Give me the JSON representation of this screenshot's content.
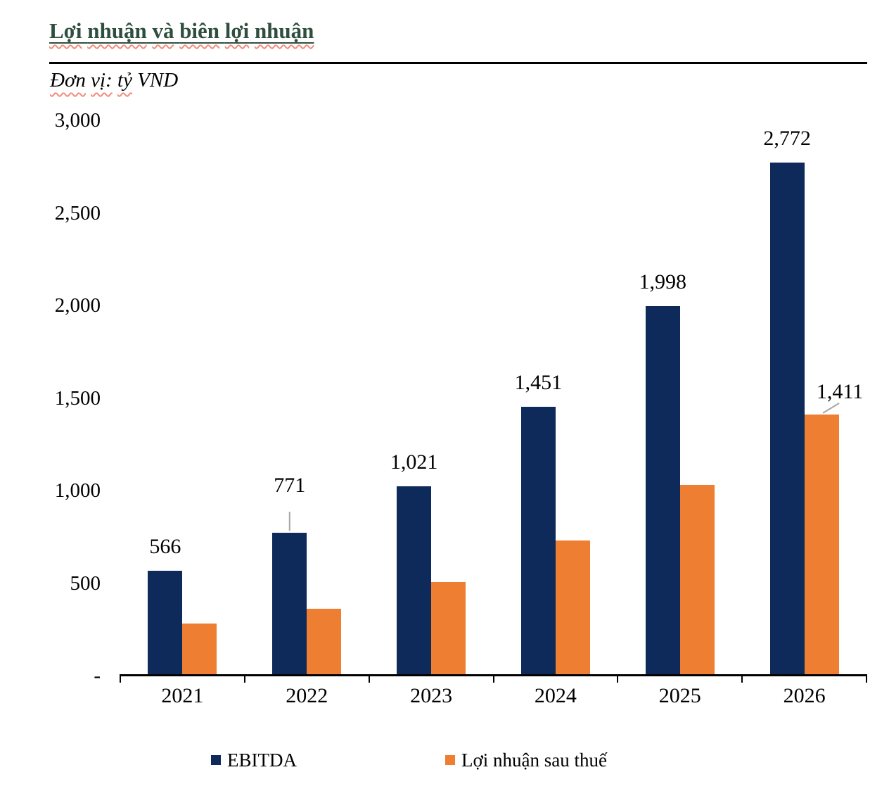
{
  "header": {
    "title": "Lợi nhuận và biên lợi nhuận",
    "title_squiggle_words": [
      "Lợi",
      "nhuận",
      "và",
      "biên",
      "lợi",
      "nhuận"
    ],
    "subtitle": "Đơn vị: tỷ VND",
    "subtitle_squiggle_words": [
      "Đơn",
      "vị:",
      "tỷ"
    ],
    "title_color": "#2F4F3E",
    "squiggle_color": "#F28B7D"
  },
  "chart_data": {
    "type": "bar",
    "title": "Lợi nhuận và biên lợi nhuận",
    "subtitle": "Đơn vị: tỷ VND",
    "unit": "tỷ VND",
    "categories": [
      "2021",
      "2022",
      "2023",
      "2024",
      "2025",
      "2026"
    ],
    "series": [
      {
        "name": "EBITDA",
        "color": "#0D2A5A",
        "values": [
          566,
          771,
          1021,
          1451,
          1998,
          2772
        ],
        "labels": [
          "566",
          "771",
          "1,021",
          "1,451",
          "1,998",
          "2,772"
        ],
        "callouts": [
          "",
          "vertical",
          "",
          "",
          "",
          ""
        ]
      },
      {
        "name": "Lợi nhuận sau thuế",
        "color": "#EE7E31",
        "values": [
          280,
          360,
          505,
          730,
          1030,
          1411
        ],
        "labels": [
          "",
          "",
          "",
          "",
          "",
          "1,411"
        ],
        "callouts": [
          "",
          "",
          "",
          "",
          "",
          "diagonal"
        ]
      }
    ],
    "ylim": [
      0,
      3000
    ],
    "yticks": [
      {
        "value": 3000,
        "label": "3,000"
      },
      {
        "value": 2500,
        "label": "2,500"
      },
      {
        "value": 2000,
        "label": "2,000"
      },
      {
        "value": 1500,
        "label": "1,500"
      },
      {
        "value": 1000,
        "label": "1,000"
      },
      {
        "value": 500,
        "label": "500"
      },
      {
        "value": 0,
        "label": "-"
      }
    ],
    "grid": false,
    "legend_position": "bottom",
    "leader_line_color": "#A6A6A6",
    "axis_color": "#000000"
  }
}
